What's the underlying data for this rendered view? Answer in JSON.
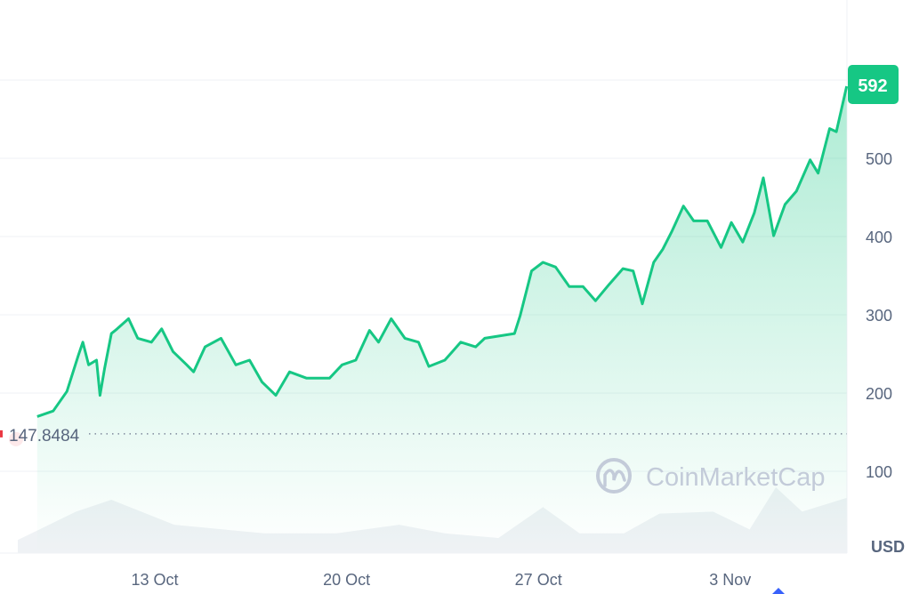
{
  "chart_data": {
    "type": "area",
    "y_axis_unit": "USD",
    "ylim": [
      0,
      650
    ],
    "y_ticks": [
      100,
      200,
      300,
      400,
      500
    ],
    "x_ticks": [
      "13 Oct",
      "20 Oct",
      "27 Oct",
      "3 Nov"
    ],
    "grid": true,
    "baseline_value": "147.8484",
    "current_value_label": "592",
    "watermark": "CoinMarketCap",
    "colors": {
      "line": "#16c784",
      "label_bg": "#16c784",
      "baseline_marker": "#ea3943",
      "volume": "#eff2f5",
      "axis_text": "#58667e"
    },
    "series": [
      {
        "x": "Oct 8 17:00",
        "y": 170
      },
      {
        "x": "Oct 9 07:00",
        "y": 177
      },
      {
        "x": "Oct 9 19:00",
        "y": 202
      },
      {
        "x": "Oct 10 05:00",
        "y": 248
      },
      {
        "x": "Oct 10 09:00",
        "y": 265
      },
      {
        "x": "Oct 10 14:00",
        "y": 236
      },
      {
        "x": "Oct 10 21:00",
        "y": 242
      },
      {
        "x": "Oct 11 00:00",
        "y": 197
      },
      {
        "x": "Oct 11 04:00",
        "y": 231
      },
      {
        "x": "Oct 11 10:00",
        "y": 276
      },
      {
        "x": "Oct 11 15:00",
        "y": 282
      },
      {
        "x": "Oct 12 01:00",
        "y": 295
      },
      {
        "x": "Oct 12 09:00",
        "y": 270
      },
      {
        "x": "Oct 12 21:00",
        "y": 265
      },
      {
        "x": "Oct 13 06:00",
        "y": 282
      },
      {
        "x": "Oct 13 16:00",
        "y": 253
      },
      {
        "x": "Oct 14 04:00",
        "y": 236
      },
      {
        "x": "Oct 14 10:00",
        "y": 227
      },
      {
        "x": "Oct 14 20:00",
        "y": 259
      },
      {
        "x": "Oct 15 10:00",
        "y": 270
      },
      {
        "x": "Oct 15 23:00",
        "y": 236
      },
      {
        "x": "Oct 16 11:00",
        "y": 242
      },
      {
        "x": "Oct 16 22:00",
        "y": 214
      },
      {
        "x": "Oct 17 10:00",
        "y": 197
      },
      {
        "x": "Oct 17 22:00",
        "y": 227
      },
      {
        "x": "Oct 18 13:00",
        "y": 219
      },
      {
        "x": "Oct 19 09:00",
        "y": 219
      },
      {
        "x": "Oct 19 20:00",
        "y": 236
      },
      {
        "x": "Oct 20 08:00",
        "y": 242
      },
      {
        "x": "Oct 20 20:00",
        "y": 280
      },
      {
        "x": "Oct 21 04:00",
        "y": 265
      },
      {
        "x": "Oct 21 15:00",
        "y": 295
      },
      {
        "x": "Oct 22 03:00",
        "y": 270
      },
      {
        "x": "Oct 22 15:00",
        "y": 265
      },
      {
        "x": "Oct 23 00:00",
        "y": 234
      },
      {
        "x": "Oct 23 14:00",
        "y": 242
      },
      {
        "x": "Oct 24 04:00",
        "y": 265
      },
      {
        "x": "Oct 24 17:00",
        "y": 259
      },
      {
        "x": "Oct 25 01:00",
        "y": 270
      },
      {
        "x": "Oct 26 03:00",
        "y": 276
      },
      {
        "x": "Oct 26 08:00",
        "y": 299
      },
      {
        "x": "Oct 26 18:00",
        "y": 356
      },
      {
        "x": "Oct 27 04:00",
        "y": 367
      },
      {
        "x": "Oct 27 15:00",
        "y": 361
      },
      {
        "x": "Oct 28 03:00",
        "y": 336
      },
      {
        "x": "Oct 28 15:00",
        "y": 336
      },
      {
        "x": "Oct 29 02:00",
        "y": 318
      },
      {
        "x": "Oct 29 14:00",
        "y": 339
      },
      {
        "x": "Oct 30 02:00",
        "y": 359
      },
      {
        "x": "Oct 30 11:00",
        "y": 356
      },
      {
        "x": "Oct 30 19:00",
        "y": 314
      },
      {
        "x": "Oct 31 05:00",
        "y": 367
      },
      {
        "x": "Oct 31 13:00",
        "y": 384
      },
      {
        "x": "Oct 31 21:00",
        "y": 407
      },
      {
        "x": "Nov 1 07:00",
        "y": 439
      },
      {
        "x": "Nov 1 16:00",
        "y": 420
      },
      {
        "x": "Nov 2 04:00",
        "y": 420
      },
      {
        "x": "Nov 2 16:00",
        "y": 386
      },
      {
        "x": "Nov 3 01:00",
        "y": 418
      },
      {
        "x": "Nov 3 11:00",
        "y": 393
      },
      {
        "x": "Nov 3 21:00",
        "y": 430
      },
      {
        "x": "Nov 4 05:00",
        "y": 475
      },
      {
        "x": "Nov 4 14:00",
        "y": 401
      },
      {
        "x": "Nov 5 00:00",
        "y": 441
      },
      {
        "x": "Nov 5 10:00",
        "y": 458
      },
      {
        "x": "Nov 5 22:00",
        "y": 498
      },
      {
        "x": "Nov 6 05:00",
        "y": 481
      },
      {
        "x": "Nov 6 15:00",
        "y": 538
      },
      {
        "x": "Nov 6 21:00",
        "y": 534
      },
      {
        "x": "Nov 7 01:00",
        "y": 560
      },
      {
        "x": "Nov 7 06:00",
        "y": 592
      }
    ],
    "volume_relative": [
      {
        "x": "Oct 8 00:00",
        "v": 0.2
      },
      {
        "x": "Oct 10 03:00",
        "v": 0.63
      },
      {
        "x": "Oct 11 10:00",
        "v": 0.81
      },
      {
        "x": "Oct 13 17:00",
        "v": 0.43
      },
      {
        "x": "Oct 17 00:00",
        "v": 0.3
      },
      {
        "x": "Oct 19 15:00",
        "v": 0.3
      },
      {
        "x": "Oct 21 22:00",
        "v": 0.43
      },
      {
        "x": "Oct 23 14:00",
        "v": 0.3
      },
      {
        "x": "Oct 25 13:00",
        "v": 0.23
      },
      {
        "x": "Oct 27 04:00",
        "v": 0.7
      },
      {
        "x": "Oct 28 12:00",
        "v": 0.3
      },
      {
        "x": "Oct 30 03:00",
        "v": 0.3
      },
      {
        "x": "Oct 31 10:00",
        "v": 0.6
      },
      {
        "x": "Nov 2 09:00",
        "v": 0.63
      },
      {
        "x": "Nov 3 17:00",
        "v": 0.36
      },
      {
        "x": "Nov 4 16:00",
        "v": 1.0
      },
      {
        "x": "Nov 5 15:00",
        "v": 0.63
      },
      {
        "x": "Nov 7 06:00",
        "v": 0.84
      }
    ]
  }
}
